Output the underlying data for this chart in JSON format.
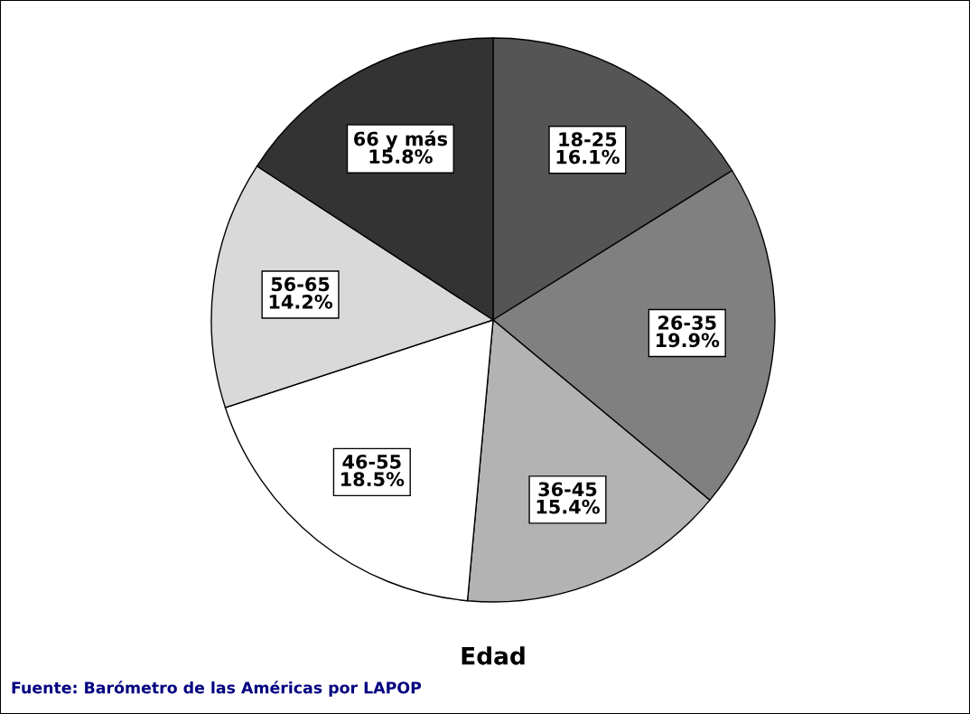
{
  "chart_data": {
    "type": "pie",
    "xlabel": "Edad",
    "categories": [
      "18-25",
      "26-35",
      "36-45",
      "46-55",
      "56-65",
      "66 y más"
    ],
    "values": [
      16.1,
      19.9,
      15.4,
      18.5,
      14.2,
      15.8
    ],
    "colors": [
      "#555555",
      "#808080",
      "#b3b3b3",
      "#ffffff",
      "#d9d9d9",
      "#333333"
    ],
    "value_labels": [
      "16.1%",
      "19.9%",
      "15.4%",
      "18.5%",
      "14.2%",
      "15.8%"
    ],
    "annotations": [
      "Fuente: Barómetro de las Américas por LAPOP"
    ]
  }
}
